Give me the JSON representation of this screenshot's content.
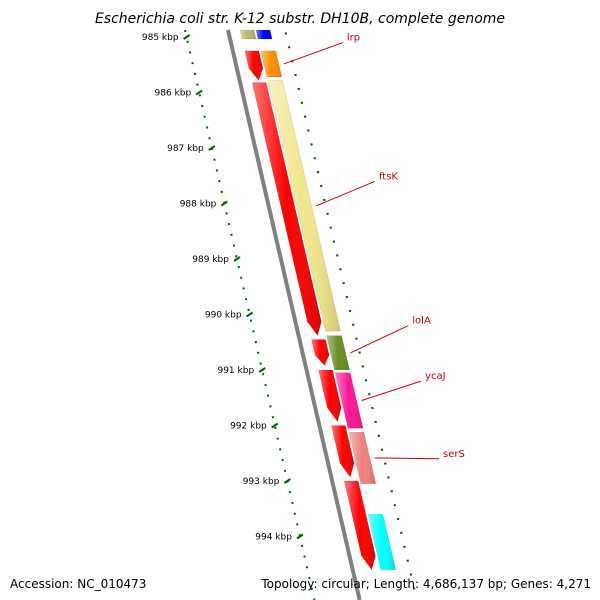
{
  "title": "Escherichia coli str. K-12 substr. DH10B, complete genome",
  "footer": {
    "accession": "Accession: NC_010473",
    "topology": "Topology: circular; Length: 4,686,137 bp; Genes: 4,271"
  },
  "ticks": [
    {
      "kbp": 985,
      "label": "985 kbp"
    },
    {
      "kbp": 986,
      "label": "986 kbp"
    },
    {
      "kbp": 987,
      "label": "987 kbp"
    },
    {
      "kbp": 988,
      "label": "988 kbp"
    },
    {
      "kbp": 989,
      "label": "989 kbp"
    },
    {
      "kbp": 990,
      "label": "990 kbp"
    },
    {
      "kbp": 991,
      "label": "991 kbp"
    },
    {
      "kbp": 992,
      "label": "992 kbp"
    },
    {
      "kbp": 993,
      "label": "993 kbp"
    },
    {
      "kbp": 994,
      "label": "994 kbp"
    }
  ],
  "red_features": [
    {
      "start": 985.25,
      "end": 985.78
    },
    {
      "start": 985.82,
      "end": 990.38
    },
    {
      "start": 990.45,
      "end": 990.92
    },
    {
      "start": 991.0,
      "end": 991.93
    },
    {
      "start": 992.0,
      "end": 992.93
    },
    {
      "start": 993.0,
      "end": 994.6
    }
  ],
  "genes": [
    {
      "label": "lrp",
      "start": 985.25,
      "end": 985.72,
      "color": "#ff8c00",
      "label_kbp": 985.1
    },
    {
      "label": "ftsK",
      "start": 985.78,
      "end": 990.3,
      "color": "#f0e68c",
      "label_kbp": 987.6
    },
    {
      "label": "lolA",
      "start": 990.38,
      "end": 991.0,
      "color": "#6b8e23",
      "label_kbp": 990.2
    },
    {
      "label": "ycaJ",
      "start": 991.05,
      "end": 992.05,
      "color": "#ff1493",
      "label_kbp": 991.2
    },
    {
      "label": "serS",
      "start": 992.12,
      "end": 993.05,
      "color": "#f08080",
      "label_kbp": 992.6
    },
    {
      "label": "",
      "start": 993.6,
      "end": 994.6,
      "color": "#00ffff",
      "label_kbp": 994.0
    }
  ],
  "top_features": [
    {
      "start": 984.5,
      "end": 985.0,
      "color": "#bdb76b"
    },
    {
      "start": 984.5,
      "end": 985.0,
      "color": "#0000ff"
    }
  ],
  "colors": {
    "backbone": "#808080",
    "tick": "#006400",
    "label": "#cc0000",
    "strand_red": "#ff0000"
  }
}
